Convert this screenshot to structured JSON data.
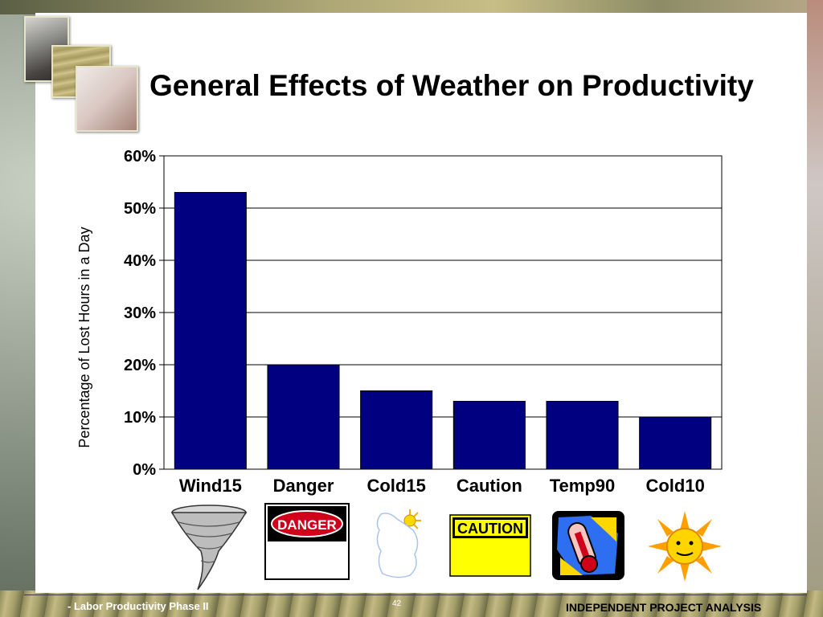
{
  "slide": {
    "title": "General Effects of Weather on Productivity"
  },
  "footer": {
    "left": "- Labor Productivity Phase II",
    "page": "42",
    "right": "INDEPENDENT PROJECT ANALYSIS"
  },
  "icons": [
    {
      "name": "tornado-icon",
      "category": "Wind15"
    },
    {
      "name": "danger-sign-icon",
      "category": "Danger",
      "text": "DANGER"
    },
    {
      "name": "cold-sun-cloud-icon",
      "category": "Cold15"
    },
    {
      "name": "caution-sign-icon",
      "category": "Caution",
      "text": "CAUTION"
    },
    {
      "name": "thermometer-heat-icon",
      "category": "Temp90"
    },
    {
      "name": "sun-face-icon",
      "category": "Cold10"
    }
  ],
  "colors": {
    "bar": "#000080",
    "grid": "#000000",
    "caution_yellow": "#ffff00",
    "danger_red": "#d0001a"
  },
  "chart_data": {
    "type": "bar",
    "categories": [
      "Wind15",
      "Danger",
      "Cold15",
      "Caution",
      "Temp90",
      "Cold10"
    ],
    "values": [
      0.53,
      0.2,
      0.15,
      0.13,
      0.13,
      0.1
    ],
    "ylabel": "Percentage of Lost Hours in a Day",
    "ylim": [
      0,
      0.6
    ],
    "yticks": [
      "0%",
      "10%",
      "20%",
      "30%",
      "40%",
      "50%",
      "60%"
    ],
    "grid": true,
    "legend": "none"
  }
}
